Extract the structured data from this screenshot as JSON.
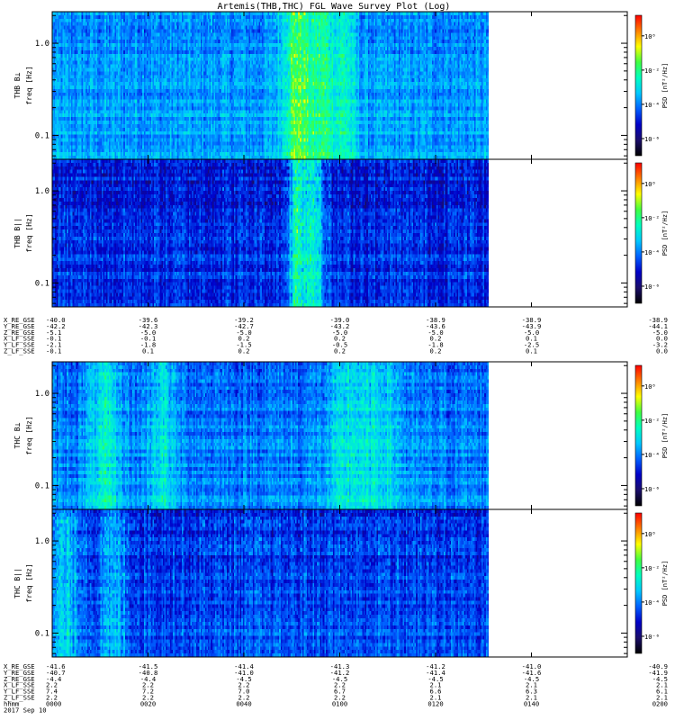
{
  "title": "Artemis(THB,THC) FGL Wave Survey Plot (Log)",
  "colorbar": {
    "label": "PSD [nT²/Hz]",
    "ticks": [
      "10⁰",
      "10⁻²",
      "10⁻⁴",
      "10⁻⁶"
    ],
    "tick_exponents": [
      0,
      -2,
      -4,
      -6
    ],
    "range_exponents": [
      -7,
      1.2
    ],
    "colors": [
      "#000000",
      "#1a0d6b",
      "#0000c8",
      "#0060ff",
      "#00c8ff",
      "#00ffc0",
      "#40ff40",
      "#ffff00",
      "#ff8000",
      "#ff0000"
    ]
  },
  "chart_data": [
    {
      "type": "heatmap",
      "ylabel": "THB B⊥\nfreq [Hz]",
      "yscale": "log",
      "yticks": [
        "1.0",
        "0.1"
      ],
      "y_tick_values": [
        1.0,
        0.1
      ],
      "ylim": [
        0.055,
        2.2
      ],
      "profile": {
        "base": -3.6,
        "noise": 0.8,
        "bands": [
          {
            "center": 0.56,
            "width": 0.035,
            "amp": 2.3
          },
          {
            "center": 0.62,
            "width": 0.03,
            "amp": 1.6
          },
          {
            "center": 0.67,
            "width": 0.025,
            "amp": 1.2
          }
        ],
        "highfreq_drop": 0.6
      }
    },
    {
      "type": "heatmap",
      "ylabel": "THB B||\nfreq [Hz]",
      "yscale": "log",
      "yticks": [
        "1.0",
        "0.1"
      ],
      "y_tick_values": [
        1.0,
        0.1
      ],
      "ylim": [
        0.055,
        2.2
      ],
      "profile": {
        "base": -4.6,
        "noise": 0.9,
        "bands": [
          {
            "center": 0.56,
            "width": 0.02,
            "amp": 2.6
          },
          {
            "center": 0.59,
            "width": 0.015,
            "amp": 1.8
          },
          {
            "center": 0.61,
            "width": 0.015,
            "amp": 1.6
          }
        ],
        "highfreq_drop": 0.8
      }
    },
    {
      "type": "heatmap",
      "ylabel": "THC B⊥\nfreq [Hz]",
      "yscale": "log",
      "yticks": [
        "1.0",
        "0.1"
      ],
      "y_tick_values": [
        1.0,
        0.1
      ],
      "ylim": [
        0.055,
        2.2
      ],
      "profile": {
        "base": -3.9,
        "noise": 0.8,
        "bands": [
          {
            "center": 0.12,
            "width": 0.04,
            "amp": 1.3
          },
          {
            "center": 0.25,
            "width": 0.03,
            "amp": 1.2
          },
          {
            "center": 0.68,
            "width": 0.05,
            "amp": 1.2
          },
          {
            "center": 0.76,
            "width": 0.04,
            "amp": 1.0
          }
        ],
        "highfreq_drop": 0.6
      }
    },
    {
      "type": "heatmap",
      "ylabel": "THC B||\nfreq [Hz]",
      "yscale": "log",
      "yticks": [
        "1.0",
        "0.1"
      ],
      "y_tick_values": [
        1.0,
        0.1
      ],
      "ylim": [
        0.055,
        2.2
      ],
      "profile": {
        "base": -4.4,
        "noise": 0.9,
        "bands": [
          {
            "center": 0.03,
            "width": 0.04,
            "amp": 1.2
          },
          {
            "center": 0.14,
            "width": 0.03,
            "amp": 1.0
          }
        ],
        "highfreq_drop": 0.8
      }
    }
  ],
  "ephemeris_top": {
    "labels": [
      "X_RE_GSE",
      "Y_RE_GSE",
      "Z_RE_GSE",
      "X_LF_SSE",
      "Y_LF_SSE",
      "Z_LF_SSE"
    ],
    "columns": [
      [
        "-40.0",
        "-42.2",
        "-5.1",
        "-0.1",
        "-2.1",
        "-0.1"
      ],
      [
        "-39.6",
        "-42.3",
        "-5.0",
        "-0.1",
        "-1.8",
        "0.1"
      ],
      [
        "-39.2",
        "-42.7",
        "-5.0",
        "0.2",
        "-1.5",
        "0.2"
      ],
      [
        "-39.0",
        "-43.2",
        "-5.0",
        "0.2",
        "-0.5",
        "0.2"
      ],
      [
        "-38.9",
        "-43.6",
        "-5.0",
        "0.2",
        "-1.8",
        "0.2"
      ],
      [
        "-38.9",
        "-43.9",
        "-5.0",
        "0.1",
        "-2.5",
        "0.1"
      ],
      [
        "-38.9",
        "-44.1",
        "-5.0",
        "0.0",
        "-3.2",
        "0.0"
      ]
    ]
  },
  "ephemeris_bottom": {
    "labels": [
      "X_RE_GSE",
      "Y_RE_GSE",
      "Z_RE_GSE",
      "X_LF_SSE",
      "Y_LF_SSE",
      "Z_LF_SSE",
      "hhmm",
      "2017 Sep 10"
    ],
    "columns": [
      [
        "-41.6",
        "-40.7",
        "-4.4",
        "2.2",
        "7.4",
        "2.2",
        "0000"
      ],
      [
        "-41.5",
        "-40.8",
        "-4.4",
        "2.2",
        "7.2",
        "2.2",
        "0020"
      ],
      [
        "-41.4",
        "-41.0",
        "-4.5",
        "2.2",
        "7.0",
        "2.2",
        "0040"
      ],
      [
        "-41.3",
        "-41.2",
        "-4.5",
        "2.2",
        "6.7",
        "2.2",
        "0100"
      ],
      [
        "-41.2",
        "-41.4",
        "-4.5",
        "2.1",
        "6.6",
        "2.1",
        "0120"
      ],
      [
        "-41.0",
        "-41.6",
        "-4.5",
        "2.1",
        "6.3",
        "2.1",
        "0140"
      ],
      [
        "-40.9",
        "-41.9",
        "-4.5",
        "2.1",
        "6.1",
        "2.1",
        "0200"
      ]
    ]
  }
}
